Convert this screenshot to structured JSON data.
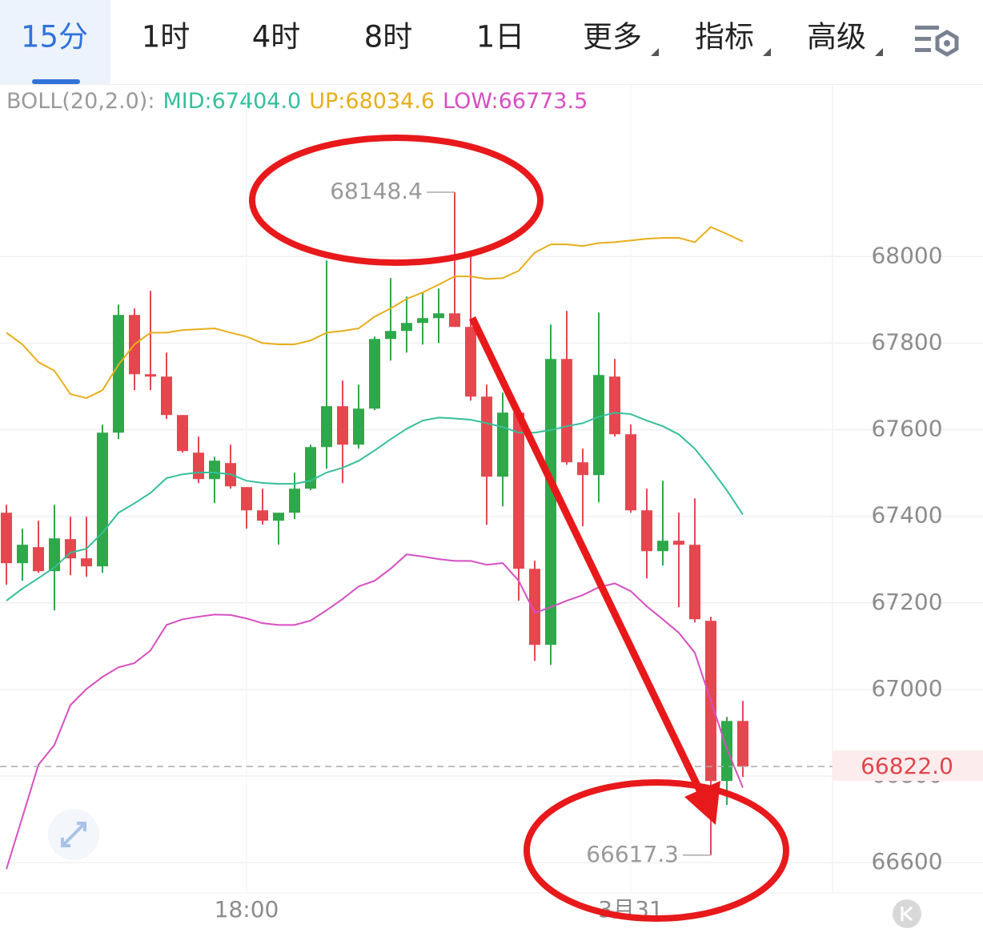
{
  "tabs": [
    "15分",
    "1时",
    "4时",
    "8时",
    "1日",
    "更多",
    "指标",
    "高级"
  ],
  "chart_data": {
    "type": "candlestick",
    "indicator": "BOLL(20,2.0):",
    "x_labels": [
      {
        "index": 15,
        "label": "18:00"
      },
      {
        "index": 39,
        "label": "3月31"
      }
    ],
    "ylim": [
      66530,
      68400
    ],
    "yticks": [
      66600,
      66800,
      67000,
      67200,
      67400,
      67600,
      67800,
      68000
    ],
    "grid": true,
    "up_color": "#2ea84a",
    "down_color": "#e5474f",
    "open": [
      67408.2,
      67291.7,
      67328.7,
      67273.2,
      67347.2,
      67302.8,
      67284.3,
      67593.1,
      67865.0,
      67728.1,
      67722.6,
      67633.8,
      67546.9,
      67485.9,
      67522.9,
      67467.4,
      67413.7,
      67389.7,
      67408.2,
      67463.7,
      67559.8,
      67654.2,
      67565.4,
      67648.6,
      67809.5,
      67828.0,
      67846.5,
      67857.6,
      67868.7,
      67837.3,
      67676.4,
      67491.4,
      67639.4,
      67278.7,
      67103.0,
      67763.3,
      67524.7,
      67495.1,
      67722.6,
      67589.4,
      67413.7,
      67319.4,
      67343.5,
      67334.2,
      67158.5,
      66788.6,
      66927.3
    ],
    "high": [
      67426.7,
      67371.2,
      67389.7,
      67426.7,
      67398.9,
      67398.9,
      67611.6,
      67889.0,
      67879.8,
      67920.5,
      67778.1,
      67633.8,
      67583.9,
      67537.7,
      67565.4,
      67467.4,
      67463.7,
      67408.2,
      67500.7,
      67565.4,
      67990.8,
      67713.3,
      67704.1,
      67815.1,
      67950.1,
      67907.5,
      67916.8,
      67926.0,
      68148.4,
      68003.7,
      67704.1,
      67685.6,
      67648.6,
      67297.2,
      67842.8,
      67874.3,
      67556.1,
      67870.5,
      67763.3,
      67611.6,
      67463.7,
      67482.2,
      67408.2,
      67441.5,
      67167.8,
      66936.6,
      66973.6
    ],
    "low": [
      67241.7,
      67251.0,
      67269.5,
      67182.6,
      67263.9,
      67260.2,
      67269.5,
      67578.3,
      67691.1,
      67691.1,
      67624.6,
      67546.9,
      67476.6,
      67430.4,
      67463.7,
      67371.2,
      67380.4,
      67334.2,
      67393.4,
      67460.0,
      67509.9,
      67476.6,
      67556.1,
      67644.9,
      67759.6,
      67778.1,
      67796.6,
      67800.3,
      67837.3,
      67667.1,
      67380.4,
      67423.0,
      67204.8,
      67066.0,
      67056.8,
      67519.2,
      67376.7,
      67432.2,
      67583.9,
      67408.2,
      67256.5,
      67286.2,
      67190.0,
      67154.8,
      66617.3,
      66733.2,
      66797.9
    ],
    "close": [
      67291.7,
      67334.2,
      67273.2,
      67349.0,
      67302.8,
      67284.3,
      67593.1,
      67865.0,
      67728.1,
      67722.6,
      67633.8,
      67550.6,
      67485.9,
      67528.4,
      67469.2,
      67413.7,
      67389.7,
      67408.2,
      67463.7,
      67559.8,
      67654.2,
      67565.4,
      67648.6,
      67809.5,
      67828.0,
      67846.5,
      67857.6,
      67868.7,
      67837.3,
      67676.4,
      67491.4,
      67639.4,
      67278.7,
      67103.0,
      67763.3,
      67524.7,
      67495.1,
      67726.3,
      67589.4,
      67413.7,
      67319.4,
      67343.5,
      67334.2,
      67162.2,
      66788.6,
      66927.3,
      66822.0
    ],
    "series": [
      {
        "name": "MID:67404.0",
        "color": "#35bf9c",
        "values": [
          67205,
          67233,
          67257,
          67282,
          67316,
          67325,
          67362,
          67408,
          67430,
          67454,
          67488,
          67497,
          67501,
          67501,
          67497,
          67482,
          67477,
          67475,
          67475,
          67482,
          67501,
          67512,
          67528,
          67552,
          67578,
          67602,
          67621,
          67628,
          67626,
          67623,
          67615,
          67606,
          67593,
          67593,
          67599,
          67608,
          67615,
          67630,
          67639,
          67636,
          67621,
          67608,
          67589,
          67556,
          67510,
          67460,
          67404.0
        ]
      },
      {
        "name": "UP:68034.6",
        "color": "#e8ae1a",
        "values": [
          67824,
          67797,
          67756,
          67736,
          67682,
          67673,
          67691,
          67750,
          67797,
          67824,
          67824,
          67830,
          67832,
          67834,
          67824,
          67815,
          67800,
          67797,
          67797,
          67806,
          67824,
          67828,
          67834,
          67861,
          67880,
          67902,
          67917,
          67935,
          67954,
          67954,
          67948,
          67950,
          67967,
          68009,
          68028,
          68028,
          68024,
          68031,
          68033,
          68037,
          68041,
          68043,
          68043,
          68033,
          68068,
          68052,
          68034.6
        ]
      },
      {
        "name": "LOW:66773.5",
        "color": "#d64fc2",
        "values": [
          66585,
          66705,
          66826,
          66872,
          66964,
          67001,
          67029,
          67051,
          67061,
          67090,
          67149,
          67162,
          67168,
          67173,
          67172,
          67164,
          67153,
          67149,
          67149,
          67159,
          67183,
          67209,
          67238,
          67251,
          67279,
          67312,
          67307,
          67301,
          67297,
          67297,
          67288,
          67292,
          67251,
          67177,
          67190,
          67205,
          67218,
          67236,
          67245,
          67227,
          67192,
          67162,
          67131,
          67085,
          66974,
          66863,
          66773.5
        ]
      }
    ],
    "last_price": {
      "value": 66822.0,
      "label": "66822.0"
    }
  }
}
